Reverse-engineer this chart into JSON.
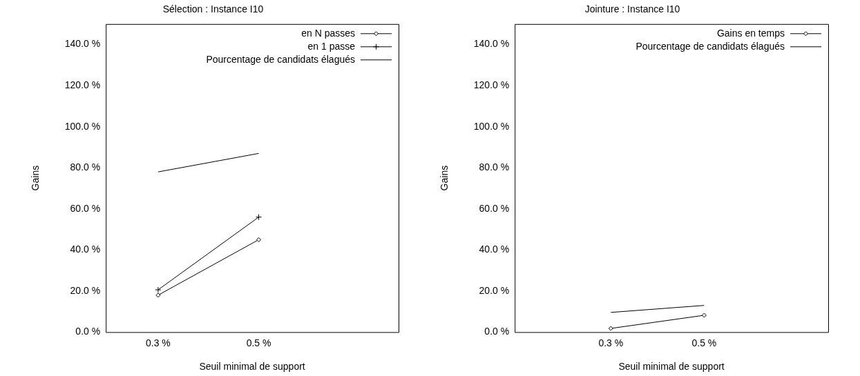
{
  "chart_data": [
    {
      "type": "line",
      "title": "Sélection : Instance I10",
      "xlabel": "Seuil minimal de support",
      "ylabel": "Gains",
      "categories": [
        "0.3 %",
        "0.5 %"
      ],
      "ylim": [
        0,
        150
      ],
      "yticks": [
        {
          "value": 0,
          "label": "0.0 %"
        },
        {
          "value": 20,
          "label": "20.0 %"
        },
        {
          "value": 40,
          "label": "40.0 %"
        },
        {
          "value": 60,
          "label": "60.0 %"
        },
        {
          "value": 80,
          "label": "80.0 %"
        },
        {
          "value": 100,
          "label": "100.0 %"
        },
        {
          "value": 120,
          "label": "120.0 %"
        },
        {
          "value": 140,
          "label": "140.0 %"
        }
      ],
      "grid": false,
      "legend": "top right",
      "series": [
        {
          "name": "en N passes",
          "color": "#000000",
          "marker": "diamond",
          "values": [
            18,
            45
          ]
        },
        {
          "name": "en 1 passe",
          "color": "#000000",
          "marker": "cross",
          "values": [
            20.6,
            56
          ]
        },
        {
          "name": "Pourcentage de candidats élagués",
          "color": "#000000",
          "marker": "none",
          "values": [
            78,
            87
          ]
        }
      ]
    },
    {
      "type": "line",
      "title": "Jointure : Instance I10",
      "xlabel": "Seuil minimal de support",
      "ylabel": "Gains",
      "categories": [
        "0.3 %",
        "0.5 %"
      ],
      "ylim": [
        0,
        150
      ],
      "yticks": [
        {
          "value": 0,
          "label": "0.0 %"
        },
        {
          "value": 20,
          "label": "20.0 %"
        },
        {
          "value": 40,
          "label": "40.0 %"
        },
        {
          "value": 60,
          "label": "60.0 %"
        },
        {
          "value": 80,
          "label": "80.0 %"
        },
        {
          "value": 100,
          "label": "100.0 %"
        },
        {
          "value": 120,
          "label": "120.0 %"
        },
        {
          "value": 140,
          "label": "140.0 %"
        }
      ],
      "grid": false,
      "legend": "top right",
      "series": [
        {
          "name": "Gains en temps",
          "color": "#000000",
          "marker": "diamond",
          "values": [
            1.8,
            8.2
          ]
        },
        {
          "name": "Pourcentage de candidats élagués",
          "color": "#000000",
          "marker": "none",
          "values": [
            9.6,
            13
          ]
        }
      ]
    }
  ]
}
